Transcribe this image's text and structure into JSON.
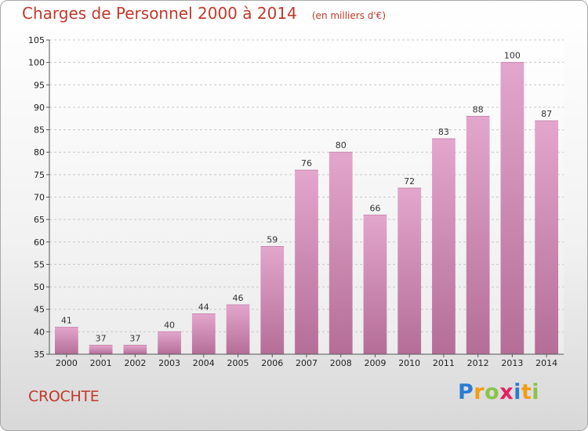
{
  "header": {
    "title": "Charges de Personnel 2000 à 2014",
    "subtitle": "(en milliers d'€)"
  },
  "location": "CROCHTE",
  "logo": {
    "text": "Proxiti",
    "letters": [
      {
        "ch": "P",
        "color": "#2b7cd3"
      },
      {
        "ch": "r",
        "color": "#f39c12"
      },
      {
        "ch": "o",
        "color": "#8bc34a"
      },
      {
        "ch": "x",
        "color": "#e91e63"
      },
      {
        "ch": "i",
        "color": "#2b7cd3"
      },
      {
        "ch": "t",
        "color": "#f39c12"
      },
      {
        "ch": "i",
        "color": "#8bc34a"
      }
    ]
  },
  "colors": {
    "title": "#c0392b",
    "bar_top": "#e3a6cc",
    "bar_bottom": "#b46e97",
    "grid": "#c8c8c8",
    "axis": "#555555"
  },
  "chart_data": {
    "type": "bar",
    "categories": [
      "2000",
      "2001",
      "2002",
      "2003",
      "2004",
      "2005",
      "2006",
      "2007",
      "2008",
      "2009",
      "2010",
      "2011",
      "2012",
      "2013",
      "2014"
    ],
    "values": [
      41,
      37,
      37,
      40,
      44,
      46,
      59,
      76,
      80,
      66,
      72,
      83,
      88,
      100,
      87
    ],
    "title": "Charges de Personnel 2000 à 2014",
    "subtitle": "(en milliers d'€)",
    "ylim": [
      35,
      105
    ],
    "yticks": [
      35,
      40,
      45,
      50,
      55,
      60,
      65,
      70,
      75,
      80,
      85,
      90,
      95,
      100,
      105
    ],
    "grid": true,
    "grid_style": "dashed",
    "show_data_labels": true
  }
}
